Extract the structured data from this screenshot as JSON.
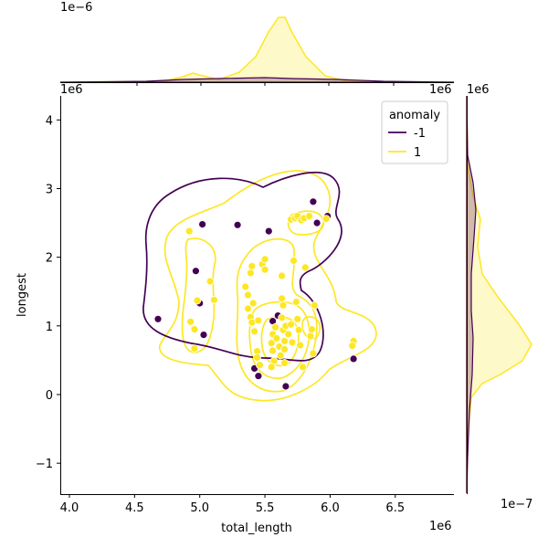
{
  "chart_data": {
    "type": "scatter",
    "xlabel": "total_length",
    "ylabel": "longest",
    "x_offset_label": "1e6",
    "y_offset_label": "1e6",
    "top_marginal_offset_label": "1e−6",
    "right_marginal_offset_label": "1e−7",
    "xlim": [
      3.93,
      6.95
    ],
    "ylim": [
      -1.45,
      4.35
    ],
    "xticks": [
      4.0,
      4.5,
      5.0,
      5.5,
      6.0,
      6.5
    ],
    "xtick_labels": [
      "4.0",
      "4.5",
      "5.0",
      "5.5",
      "6.0",
      "6.5"
    ],
    "yticks": [
      -1,
      0,
      1,
      2,
      3,
      4
    ],
    "ytick_labels": [
      "−1",
      "0",
      "1",
      "2",
      "3",
      "4"
    ],
    "legend": {
      "title": "anomaly",
      "position": "upper-right",
      "entries": [
        {
          "label": "-1",
          "color": "#440154"
        },
        {
          "label": "1",
          "color": "#fde725"
        }
      ]
    },
    "colors": {
      "anomaly_-1": "#440154",
      "anomaly_1": "#fde725"
    },
    "series": [
      {
        "name": "-1",
        "color": "#440154",
        "points": [
          [
            4.68,
            1.1
          ],
          [
            5.02,
            2.48
          ],
          [
            4.97,
            1.8
          ],
          [
            5.0,
            1.33
          ],
          [
            5.03,
            0.87
          ],
          [
            5.29,
            2.47
          ],
          [
            5.53,
            2.38
          ],
          [
            5.56,
            1.07
          ],
          [
            5.6,
            1.15
          ],
          [
            5.42,
            0.38
          ],
          [
            5.45,
            0.27
          ],
          [
            5.66,
            0.12
          ],
          [
            5.87,
            2.81
          ],
          [
            5.9,
            2.5
          ],
          [
            5.98,
            2.6
          ],
          [
            6.18,
            0.52
          ]
        ]
      },
      {
        "name": "1",
        "color": "#fde725",
        "points": [
          [
            4.92,
            2.38
          ],
          [
            4.93,
            1.06
          ],
          [
            4.96,
            0.95
          ],
          [
            4.96,
            0.67
          ],
          [
            4.98,
            1.37
          ],
          [
            5.08,
            1.65
          ],
          [
            5.11,
            1.38
          ],
          [
            5.35,
            1.57
          ],
          [
            5.37,
            1.45
          ],
          [
            5.39,
            1.77
          ],
          [
            5.4,
            1.87
          ],
          [
            5.41,
            1.33
          ],
          [
            5.37,
            1.25
          ],
          [
            5.39,
            1.13
          ],
          [
            5.4,
            1.05
          ],
          [
            5.42,
            0.92
          ],
          [
            5.45,
            1.08
          ],
          [
            5.44,
            0.63
          ],
          [
            5.44,
            0.54
          ],
          [
            5.46,
            0.43
          ],
          [
            5.48,
            1.9
          ],
          [
            5.5,
            1.97
          ],
          [
            5.5,
            1.82
          ],
          [
            5.56,
            0.88
          ],
          [
            5.55,
            0.75
          ],
          [
            5.56,
            0.64
          ],
          [
            5.57,
            0.49
          ],
          [
            5.55,
            0.4
          ],
          [
            5.58,
            0.98
          ],
          [
            5.59,
            0.82
          ],
          [
            5.61,
            0.7
          ],
          [
            5.62,
            0.57
          ],
          [
            5.63,
            1.4
          ],
          [
            5.64,
            1.3
          ],
          [
            5.63,
            1.12
          ],
          [
            5.64,
            0.94
          ],
          [
            5.65,
            0.78
          ],
          [
            5.65,
            0.66
          ],
          [
            5.65,
            0.46
          ],
          [
            5.63,
            1.73
          ],
          [
            5.66,
            1.0
          ],
          [
            5.68,
            0.88
          ],
          [
            5.7,
            1.02
          ],
          [
            5.71,
            0.76
          ],
          [
            5.7,
            2.55
          ],
          [
            5.72,
            1.95
          ],
          [
            5.73,
            2.57
          ],
          [
            5.74,
            1.35
          ],
          [
            5.75,
            1.1
          ],
          [
            5.75,
            2.6
          ],
          [
            5.76,
            0.94
          ],
          [
            5.77,
            0.72
          ],
          [
            5.78,
            2.54
          ],
          [
            5.79,
            0.4
          ],
          [
            5.8,
            2.57
          ],
          [
            5.81,
            1.85
          ],
          [
            5.84,
            2.6
          ],
          [
            5.85,
            0.85
          ],
          [
            5.86,
            0.95
          ],
          [
            5.87,
            0.6
          ],
          [
            5.88,
            1.3
          ],
          [
            5.97,
            2.56
          ],
          [
            6.18,
            0.78
          ],
          [
            6.17,
            0.71
          ]
        ]
      }
    ]
  }
}
